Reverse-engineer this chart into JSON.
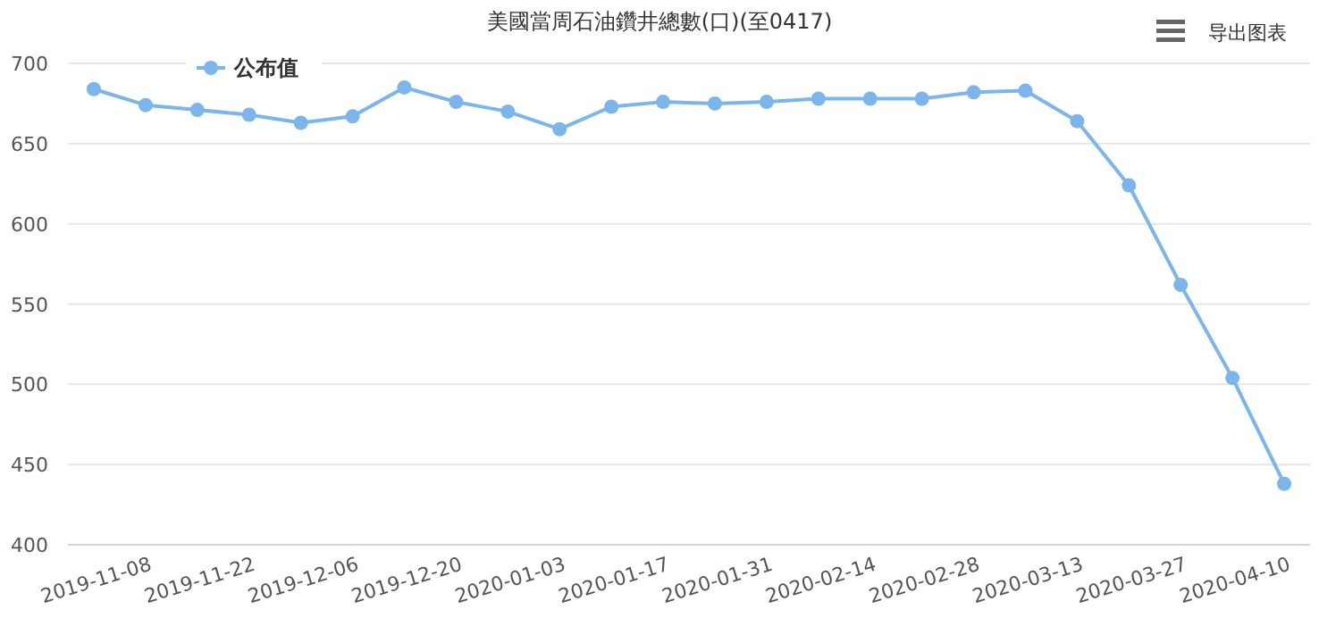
{
  "chart_data": {
    "type": "line",
    "title": "美國當周石油鑽井總數(口)(至0417)",
    "categories": [
      null,
      "2019-11-08",
      null,
      "2019-11-22",
      null,
      "2019-12-06",
      null,
      "2019-12-20",
      null,
      "2020-01-03",
      null,
      "2020-01-17",
      null,
      "2020-01-31",
      null,
      "2020-02-14",
      null,
      "2020-02-28",
      null,
      "2020-03-13",
      null,
      "2020-03-27",
      null,
      "2020-04-10"
    ],
    "series": [
      {
        "name": "公布值",
        "color": "#7cb5ec",
        "values": [
          684,
          674,
          671,
          668,
          663,
          667,
          685,
          676,
          670,
          659,
          673,
          676,
          675,
          676,
          678,
          678,
          678,
          682,
          683,
          664,
          624,
          562,
          504,
          438
        ]
      }
    ],
    "ylim": [
      400,
      700
    ],
    "yticks": [
      400,
      450,
      500,
      550,
      600,
      650,
      700
    ],
    "grid": "y",
    "legend": "top left",
    "marker": "circle",
    "line_style": "solid",
    "annotations": [
      "导出图表"
    ]
  }
}
